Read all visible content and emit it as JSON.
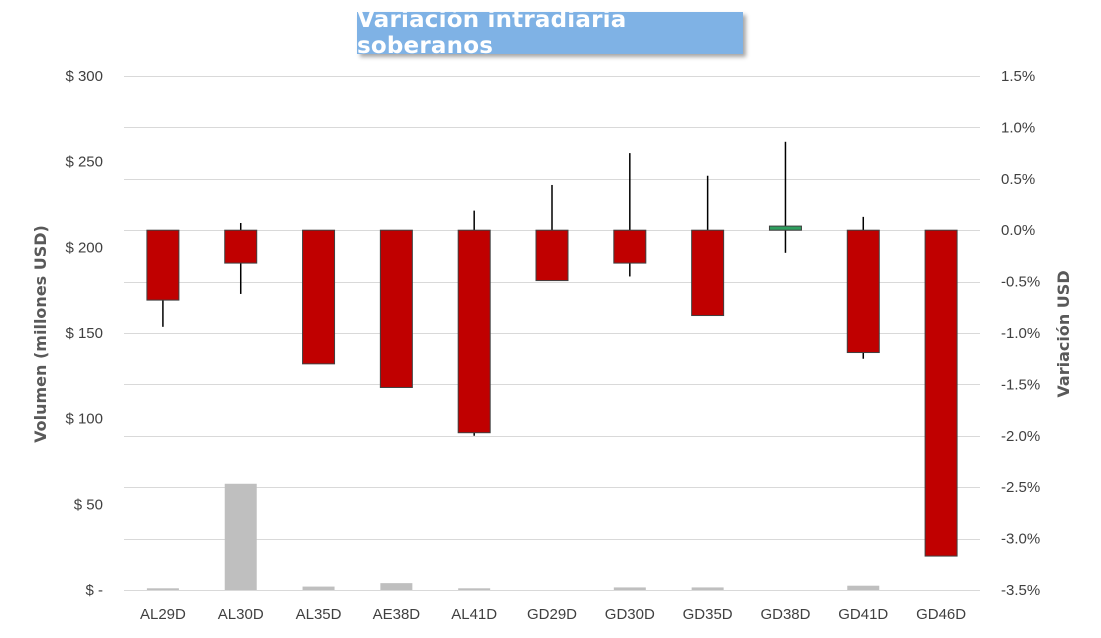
{
  "chart_data": {
    "type": "bar",
    "title": "Variación intradiaria soberanos",
    "ylabel": "Volumen (millones USD)",
    "y2label": "Variación USD",
    "categories": [
      "AL29D",
      "AL30D",
      "AL35D",
      "AE38D",
      "AL41D",
      "GD29D",
      "GD30D",
      "GD35D",
      "GD38D",
      "GD41D",
      "GD46D"
    ],
    "ylim": [
      0,
      300
    ],
    "yticks": [
      0,
      50,
      100,
      150,
      200,
      250,
      300
    ],
    "ytick_labels": [
      "$ -",
      "$ 50",
      "$ 100",
      "$ 150",
      "$ 200",
      "$ 250",
      "$ 300"
    ],
    "y2lim": [
      -3.5,
      1.5
    ],
    "y2ticks": [
      -3.5,
      -3.0,
      -2.5,
      -2.0,
      -1.5,
      -1.0,
      -0.5,
      0.0,
      0.5,
      1.0,
      1.5
    ],
    "y2tick_labels": [
      "-3.5%",
      "-3.0%",
      "-2.5%",
      "-2.0%",
      "-1.5%",
      "-1.0%",
      "-0.5%",
      "0.0%",
      "0.5%",
      "1.0%",
      "1.5%"
    ],
    "grid": true,
    "series": [
      {
        "type": "bar",
        "axis": "left",
        "color": "#bfbfbf",
        "values": [
          1,
          62,
          2,
          4,
          1,
          0,
          1.5,
          1.5,
          0,
          2.5,
          0
        ]
      },
      {
        "type": "candlestick",
        "axis": "right",
        "color_up": "#2e9e5e",
        "color_down": "#c00000",
        "open": [
          0.0,
          0.0,
          0.0,
          0.0,
          0.0,
          0.0,
          0.0,
          0.0,
          0.0,
          0.0,
          0.0
        ],
        "close": [
          -0.68,
          -0.32,
          -1.3,
          -1.53,
          -1.97,
          -0.49,
          -0.32,
          -0.83,
          0.04,
          -1.19,
          -3.17
        ],
        "high": [
          0.0,
          0.07,
          0.0,
          0.0,
          0.19,
          0.44,
          0.75,
          0.53,
          0.86,
          0.13,
          0.0
        ],
        "low": [
          -0.94,
          -0.62,
          -1.3,
          -1.53,
          -2.0,
          -0.49,
          -0.45,
          -0.83,
          -0.22,
          -1.25,
          -3.17
        ]
      }
    ]
  }
}
